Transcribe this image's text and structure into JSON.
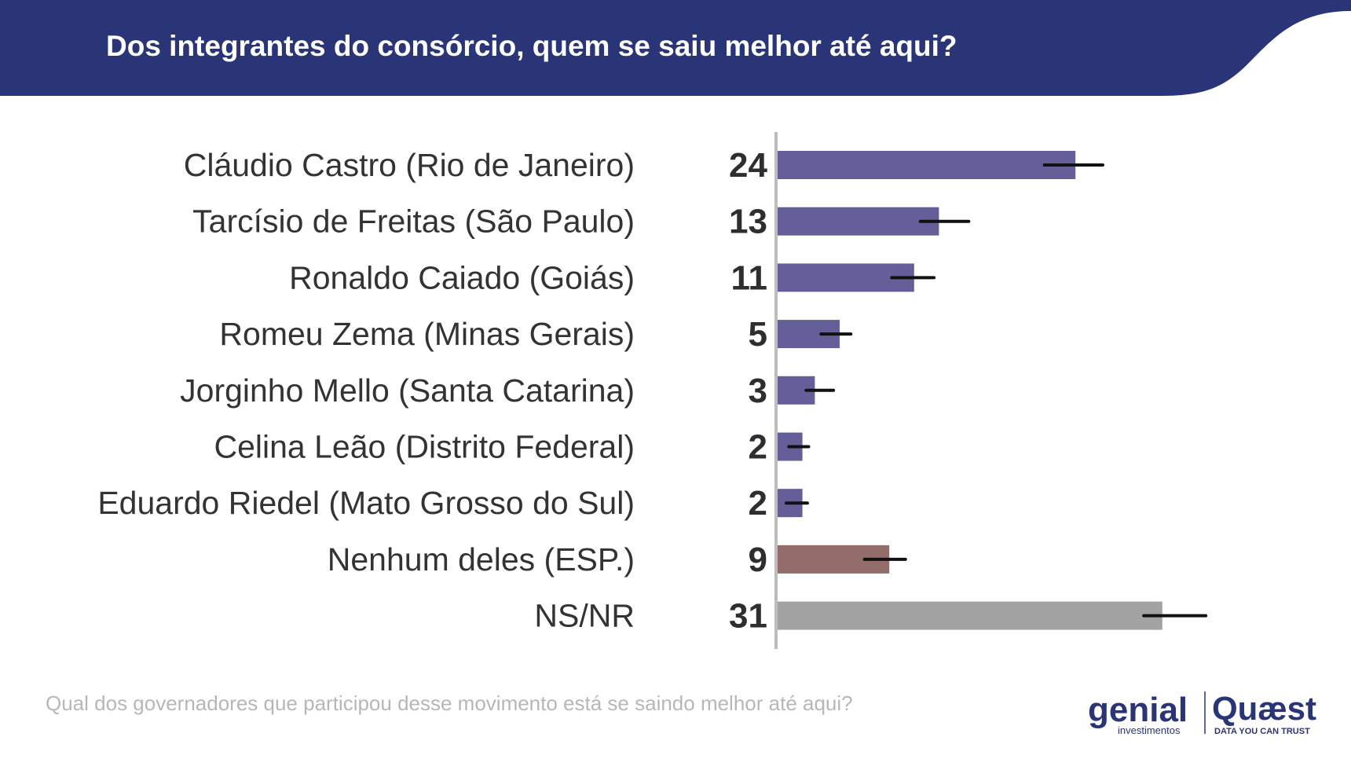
{
  "header": {
    "title": "Dos integrantes do consórcio, quem se saiu melhor até aqui?"
  },
  "colors": {
    "header_bg": "#2a3578",
    "governor_bar": "#645f98",
    "nenhum_bar": "#946c6a",
    "nsnr_bar": "#a3a3a3",
    "axis": "#bdbdbd",
    "error_bar": "#111111"
  },
  "chart_data": {
    "type": "bar",
    "orientation": "horizontal",
    "categories": [
      "Cláudio Castro (Rio de Janeiro)",
      "Tarcísio de Freitas (São Paulo)",
      "Ronaldo Caiado (Goiás)",
      "Romeu Zema (Minas Gerais)",
      "Jorginho Mello (Santa Catarina)",
      "Celina Leão (Distrito Federal)",
      "Eduardo Riedel (Mato Grosso do Sul)",
      "Nenhum deles (ESP.)",
      "NS/NR"
    ],
    "values": [
      24,
      13,
      11,
      5,
      3,
      2,
      2,
      9,
      31
    ],
    "value_labels": [
      "24",
      "13",
      "11",
      "5",
      "3",
      "2",
      "2",
      "9",
      "31"
    ],
    "error_bars": [
      [
        21.5,
        26.2
      ],
      [
        11.5,
        15.4
      ],
      [
        9.2,
        12.6
      ],
      [
        3.5,
        5.9
      ],
      [
        2.3,
        4.5
      ],
      [
        0.9,
        2.5
      ],
      [
        0.7,
        2.4
      ],
      [
        7,
        10.3
      ],
      [
        29.5,
        34.5
      ]
    ],
    "bar_colors": [
      "#645f98",
      "#645f98",
      "#645f98",
      "#645f98",
      "#645f98",
      "#645f98",
      "#645f98",
      "#946c6a",
      "#a3a3a3"
    ],
    "xlim": [
      0,
      40
    ],
    "legend": "none",
    "grid": false
  },
  "footer": {
    "question": "Qual dos governadores que participou desse movimento está se saindo melhor até aqui?",
    "logo_genial": "genial",
    "logo_genial_sub": "investimentos",
    "logo_quaest": "Quæst",
    "logo_quaest_sub": "DATA YOU CAN TRUST"
  }
}
